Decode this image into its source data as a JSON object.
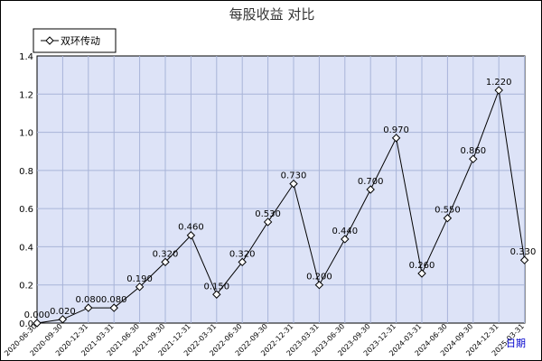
{
  "chart_data": {
    "type": "line",
    "title": "每股收益  对比",
    "xlabel": "日期",
    "ylabel": "",
    "ylim": [
      0,
      1.4
    ],
    "yticks": [
      "0.0",
      "0.2",
      "0.4",
      "0.6",
      "0.8",
      "1.0",
      "1.2",
      "1.4"
    ],
    "grid": true,
    "legend": "top-left",
    "series": [
      {
        "name": "双环传动",
        "color": "#000000",
        "x": [
          "2020-06-30",
          "2020-09-30",
          "2020-12-31",
          "2021-03-31",
          "2021-06-30",
          "2021-09-30",
          "2021-12-31",
          "2022-03-31",
          "2022-06-30",
          "2022-09-30",
          "2022-12-31",
          "2023-03-31",
          "2023-06-30",
          "2023-09-30",
          "2023-12-31",
          "2024-03-31",
          "2024-06-30",
          "2024-09-30",
          "2024-12-31",
          "2025-03-31"
        ],
        "values": [
          0.0,
          0.02,
          0.08,
          0.08,
          0.19,
          0.32,
          0.46,
          0.15,
          0.32,
          0.53,
          0.73,
          0.2,
          0.44,
          0.7,
          0.97,
          0.26,
          0.55,
          0.86,
          1.22,
          0.33
        ],
        "labels": [
          "0.000",
          "0.020",
          "0.080",
          "0.080",
          "0.190",
          "0.320",
          "0.460",
          "0.150",
          "0.320",
          "0.530",
          "0.730",
          "0.200",
          "0.440",
          "0.700",
          "0.970",
          "0.260",
          "0.550",
          "0.860",
          "1.220",
          "0.330"
        ]
      }
    ],
    "colors": {
      "plot_bg": "#dde3f7",
      "grid": "#a8b4d8",
      "line": "#000000"
    }
  }
}
